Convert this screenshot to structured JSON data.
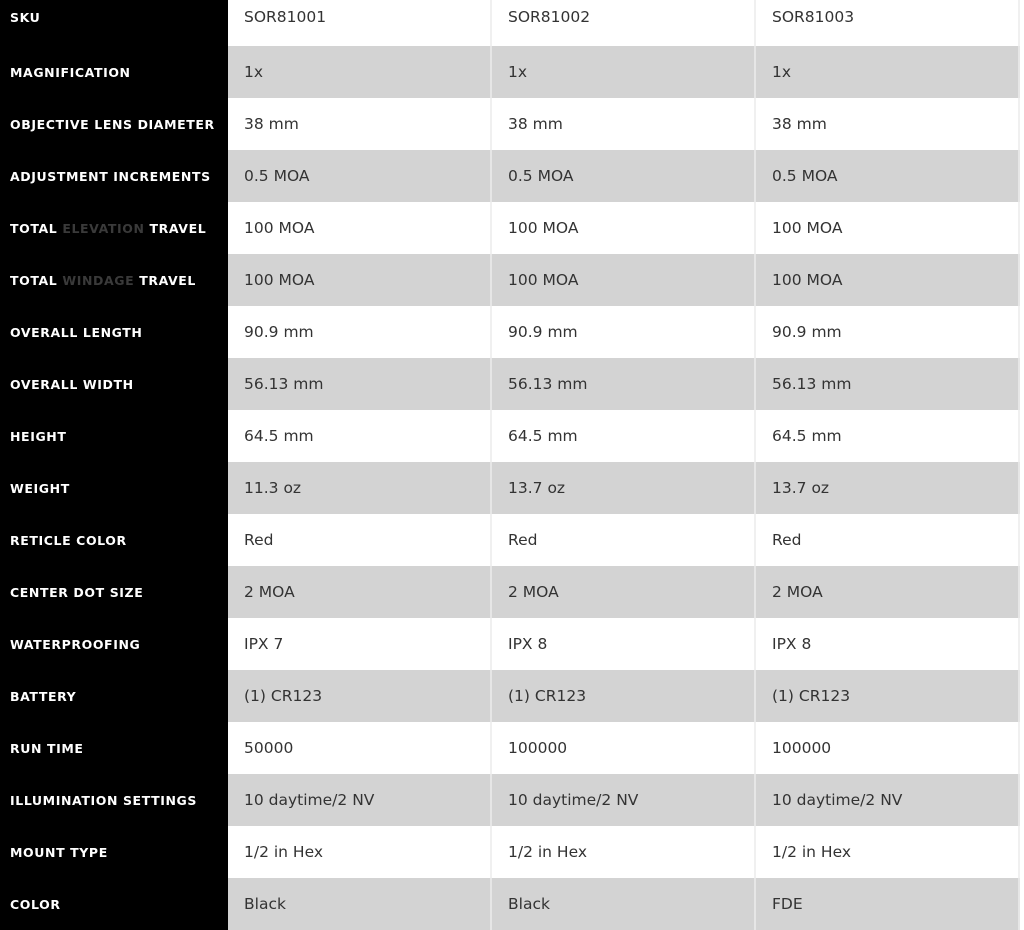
{
  "rows": [
    {
      "label": [
        "SKU"
      ],
      "values": [
        "SOR81001",
        "SOR81002",
        "SOR81003"
      ]
    },
    {
      "label": [
        "MAGNIFICATION"
      ],
      "values": [
        "1x",
        "1x",
        "1x"
      ]
    },
    {
      "label": [
        "OBJECTIVE LENS DIAMETER"
      ],
      "values": [
        "38 mm",
        "38 mm",
        "38 mm"
      ]
    },
    {
      "label": [
        "ADJUSTMENT INCREMENTS"
      ],
      "values": [
        "0.5 MOA",
        "0.5 MOA",
        "0.5 MOA"
      ]
    },
    {
      "label": [
        "TOTAL ",
        "ELEVATION",
        " TRAVEL"
      ],
      "values": [
        "100 MOA",
        "100 MOA",
        "100 MOA"
      ]
    },
    {
      "label": [
        "TOTAL ",
        "WINDAGE",
        " TRAVEL"
      ],
      "values": [
        "100 MOA",
        "100 MOA",
        "100 MOA"
      ]
    },
    {
      "label": [
        "OVERALL LENGTH"
      ],
      "values": [
        "90.9 mm",
        "90.9 mm",
        "90.9 mm"
      ]
    },
    {
      "label": [
        "OVERALL WIDTH"
      ],
      "values": [
        "56.13 mm",
        "56.13 mm",
        "56.13 mm"
      ]
    },
    {
      "label": [
        "HEIGHT"
      ],
      "values": [
        "64.5 mm",
        "64.5 mm",
        "64.5 mm"
      ]
    },
    {
      "label": [
        "WEIGHT"
      ],
      "values": [
        "11.3 oz",
        "13.7 oz",
        "13.7 oz"
      ]
    },
    {
      "label": [
        "RETICLE COLOR"
      ],
      "values": [
        "Red",
        "Red",
        "Red"
      ]
    },
    {
      "label": [
        "CENTER DOT SIZE"
      ],
      "values": [
        "2 MOA",
        "2 MOA",
        "2 MOA"
      ]
    },
    {
      "label": [
        "WATERPROOFING"
      ],
      "values": [
        "IPX 7",
        "IPX 8",
        "IPX 8"
      ]
    },
    {
      "label": [
        "BATTERY"
      ],
      "values": [
        "(1) CR123",
        "(1) CR123",
        "(1) CR123"
      ]
    },
    {
      "label": [
        "RUN TIME"
      ],
      "values": [
        "50000",
        "100000",
        "100000"
      ]
    },
    {
      "label": [
        "ILLUMINATION SETTINGS"
      ],
      "values": [
        "10 daytime/2 NV",
        "10 daytime/2 NV",
        "10 daytime/2 NV"
      ]
    },
    {
      "label": [
        "MOUNT TYPE"
      ],
      "values": [
        "1/2 in Hex",
        "1/2 in Hex",
        "1/2 in Hex"
      ]
    },
    {
      "label": [
        "COLOR"
      ],
      "values": [
        "Black",
        "Black",
        "FDE"
      ]
    }
  ]
}
